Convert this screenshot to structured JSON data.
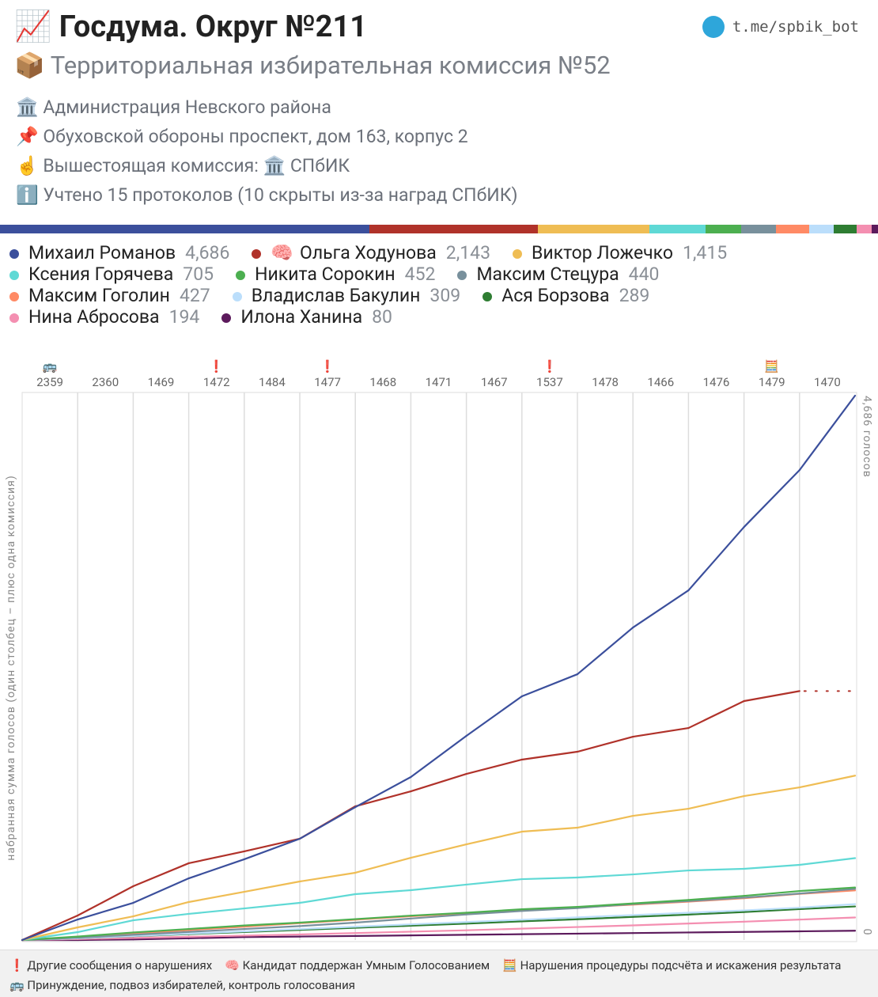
{
  "header": {
    "title_icon": "📈",
    "title": "Госдума. Округ №211",
    "link": "t.me/spbik_bot",
    "subtitle_icon": "📦",
    "subtitle": "Территориальная избирательная комиссия №52",
    "info": [
      {
        "icon": "🏛️",
        "text": "Администрация Невского района"
      },
      {
        "icon": "📌",
        "text": "Обуховской обороны проспект, дом 163, корпус 2"
      },
      {
        "icon": "☝️",
        "text": "Вышестоящая комиссия: 🏛️ СПбИК"
      },
      {
        "icon": "ℹ️",
        "text": "Учтено 15 протоколов (10 скрыты из-за наград СПбИК)"
      }
    ]
  },
  "chart_data": {
    "type": "line",
    "y_label": "набранная сумма голосов (один столбец – плюс одна комиссия)",
    "categories": [
      "2359",
      "2360",
      "1469",
      "1472",
      "1484",
      "1477",
      "1468",
      "1471",
      "1467",
      "1537",
      "1478",
      "1466",
      "1476",
      "1479",
      "1470"
    ],
    "column_icons": [
      "🚌",
      null,
      null,
      "❗",
      null,
      "❗",
      null,
      null,
      null,
      "❗",
      null,
      null,
      null,
      "🧮",
      null
    ],
    "ylim": [
      0,
      4686
    ],
    "yticks": [
      0,
      {
        "value": 4686,
        "label": "4,686 голосов"
      }
    ],
    "grid": true,
    "series": [
      {
        "name": "Михаил Романов",
        "color": "#3b4f9c",
        "total": {
          "value": 4686,
          "label": "4,686"
        },
        "values": [
          177,
          143,
          211,
          164,
          177,
          272,
          259,
          354,
          341,
          190,
          402,
          320,
          545,
          490,
          641
        ]
      },
      {
        "name": "Ольга Ходунова",
        "icon": "🧠",
        "color": "#b0322a",
        "total": {
          "value": 2143,
          "label": "2,143"
        },
        "values": [
          211,
          252,
          198,
          102,
          109,
          279,
          129,
          150,
          123,
          68,
          129,
          75,
          232,
          86,
          null
        ]
      },
      {
        "name": "Виктор Ложечко",
        "color": "#efbd54",
        "total": {
          "value": 1415,
          "label": "1,415"
        },
        "values": [
          109,
          95,
          123,
          88,
          89,
          75,
          129,
          116,
          109,
          34,
          102,
          61,
          109,
          75,
          101
        ]
      },
      {
        "name": "Ксения Горячева",
        "color": "#5fd9d5",
        "total": 705,
        "values": [
          68,
          102,
          55,
          47,
          48,
          75,
          34,
          48,
          47,
          14,
          27,
          34,
          14,
          34,
          58
        ]
      },
      {
        "name": "Никита Сорокин",
        "color": "#4caf50",
        "total": 452,
        "values": [
          30,
          35,
          30,
          30,
          25,
          30,
          30,
          25,
          30,
          20,
          30,
          30,
          35,
          42,
          30
        ]
      },
      {
        "name": "Максим Стецура",
        "color": "#78909c",
        "total": 440,
        "values": [
          20,
          25,
          25,
          25,
          25,
          30,
          35,
          35,
          30,
          25,
          35,
          25,
          30,
          35,
          40
        ]
      },
      {
        "name": "Максим Гоголин",
        "color": "#ff8a65",
        "total": 427,
        "values": [
          25,
          30,
          30,
          30,
          30,
          30,
          30,
          25,
          25,
          25,
          25,
          25,
          30,
          37,
          30
        ]
      },
      {
        "name": "Владислав Бакулин",
        "color": "#bbdefb",
        "total": 309,
        "values": [
          15,
          20,
          20,
          20,
          20,
          20,
          20,
          20,
          20,
          20,
          20,
          20,
          20,
          24,
          30
        ]
      },
      {
        "name": "Ася Борзова",
        "color": "#2e7d32",
        "total": 289,
        "values": [
          15,
          18,
          18,
          18,
          18,
          18,
          18,
          18,
          20,
          18,
          20,
          20,
          22,
          25,
          23
        ]
      },
      {
        "name": "Нина Абросова",
        "color": "#f48fb1",
        "total": 194,
        "values": [
          8,
          10,
          10,
          10,
          10,
          12,
          12,
          12,
          14,
          14,
          14,
          16,
          16,
          18,
          18
        ]
      },
      {
        "name": "Илона Ханина",
        "color": "#5c1a5c",
        "total": 80,
        "values": [
          0,
          5,
          10,
          10,
          5,
          5,
          5,
          5,
          5,
          5,
          5,
          5,
          5,
          5,
          5
        ]
      }
    ]
  },
  "footer": {
    "notes": [
      {
        "icon": "❗",
        "text": "Другие сообщения о нарушениях"
      },
      {
        "icon": "🧠",
        "text": "Кандидат поддержан Умным Голосованием"
      },
      {
        "icon": "🧮",
        "text": "Нарушения процедуры подсчёта и искажения результата"
      },
      {
        "icon": "🚌",
        "text": "Принуждение, подвоз избирателей, контроль голосования"
      }
    ]
  }
}
